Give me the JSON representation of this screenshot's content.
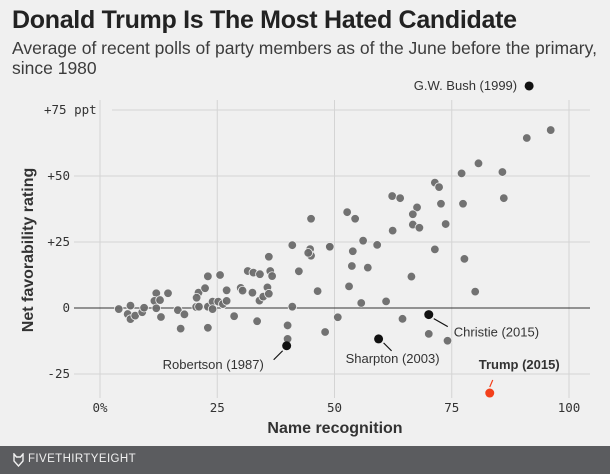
{
  "chart_data": {
    "type": "scatter",
    "title": "Donald Trump Is The Most Hated Candidate",
    "subtitle": "Average of recent polls of party members as of the June before the primary, since 1980",
    "xlabel": "Name recognition",
    "ylabel": "Net favorability rating",
    "xlim": [
      -7,
      105
    ],
    "ylim": [
      -33,
      87
    ],
    "x_ticks": [
      0,
      25,
      50,
      75,
      100
    ],
    "x_tick_labels": [
      "0%",
      "25",
      "50",
      "75",
      "100"
    ],
    "y_ticks": [
      75,
      50,
      25,
      0,
      -25
    ],
    "y_tick_labels": [
      "+75 ppt",
      "+50",
      "+25",
      "0",
      "-25"
    ],
    "grid": true,
    "colors": {
      "points": "#6a6a6a",
      "highlight": "#111111",
      "trump": "#f3401b",
      "grid": "#d4d4d4",
      "zero_line": "#333333"
    },
    "points": [
      [
        4.0,
        -0.4
      ],
      [
        6.5,
        0.9
      ],
      [
        5.9,
        -2.3
      ],
      [
        6.5,
        -4.2
      ],
      [
        7.5,
        -2.9
      ],
      [
        9.0,
        -1.6
      ],
      [
        9.4,
        0.1
      ],
      [
        12.0,
        5.6
      ],
      [
        11.6,
        2.7
      ],
      [
        12.8,
        3.0
      ],
      [
        12.0,
        -0.1
      ],
      [
        13.0,
        -3.4
      ],
      [
        14.5,
        5.6
      ],
      [
        16.6,
        -0.8
      ],
      [
        18.0,
        -2.4
      ],
      [
        17.2,
        -7.8
      ],
      [
        21.0,
        5.8
      ],
      [
        20.6,
        3.9
      ],
      [
        22.4,
        7.5
      ],
      [
        23.0,
        12.0
      ],
      [
        25.6,
        12.5
      ],
      [
        27.0,
        6.7
      ],
      [
        20.5,
        0.4
      ],
      [
        21.1,
        0.5
      ],
      [
        23.0,
        0.5
      ],
      [
        24.0,
        2.4
      ],
      [
        25.2,
        2.4
      ],
      [
        26.2,
        1.5
      ],
      [
        27.0,
        2.7
      ],
      [
        24.0,
        -0.4
      ],
      [
        23.0,
        -7.5
      ],
      [
        28.6,
        -3.1
      ],
      [
        30.0,
        7.6
      ],
      [
        30.4,
        6.6
      ],
      [
        31.5,
        14.0
      ],
      [
        32.7,
        13.4
      ],
      [
        34.1,
        12.8
      ],
      [
        32.5,
        5.8
      ],
      [
        34.0,
        2.8
      ],
      [
        34.8,
        4.3
      ],
      [
        35.7,
        7.8
      ],
      [
        36.0,
        5.4
      ],
      [
        36.0,
        19.4
      ],
      [
        36.3,
        14.0
      ],
      [
        36.7,
        12.1
      ],
      [
        33.5,
        -5.0
      ],
      [
        41.0,
        23.8
      ],
      [
        42.4,
        13.9
      ],
      [
        41.0,
        0.5
      ],
      [
        40.0,
        -6.6
      ],
      [
        40.0,
        -11.7
      ],
      [
        45.0,
        33.8
      ],
      [
        44.8,
        22.3
      ],
      [
        45.0,
        19.8
      ],
      [
        44.4,
        20.9
      ],
      [
        46.4,
        6.4
      ],
      [
        48.0,
        -9.1
      ],
      [
        48.9,
        23.0
      ],
      [
        96.1,
        67.4
      ],
      [
        91.0,
        64.4
      ],
      [
        80.7,
        54.8
      ],
      [
        77.1,
        51.0
      ],
      [
        85.8,
        51.5
      ],
      [
        86.1,
        41.6
      ],
      [
        77.4,
        39.5
      ],
      [
        71.4,
        47.5
      ],
      [
        72.3,
        45.8
      ],
      [
        72.7,
        39.5
      ],
      [
        73.7,
        31.8
      ],
      [
        62.3,
        42.4
      ],
      [
        64.0,
        41.6
      ],
      [
        52.7,
        36.3
      ],
      [
        54.4,
        33.8
      ],
      [
        67.6,
        38.1
      ],
      [
        66.7,
        35.5
      ],
      [
        66.7,
        31.6
      ],
      [
        68.1,
        30.4
      ],
      [
        62.4,
        29.3
      ],
      [
        56.1,
        25.5
      ],
      [
        59.1,
        23.9
      ],
      [
        49.0,
        23.2
      ],
      [
        53.9,
        21.5
      ],
      [
        71.4,
        22.2
      ],
      [
        77.7,
        18.6
      ],
      [
        53.7,
        15.9
      ],
      [
        57.1,
        15.3
      ],
      [
        66.4,
        11.9
      ],
      [
        53.1,
        8.2
      ],
      [
        80.0,
        6.2
      ],
      [
        55.7,
        1.9
      ],
      [
        61.0,
        2.5
      ],
      [
        50.7,
        -3.5
      ],
      [
        64.5,
        -4.1
      ],
      [
        70.1,
        -9.8
      ],
      [
        74.1,
        -12.4
      ]
    ],
    "labeled_points": [
      {
        "label": "G.W. Bush (1999)",
        "x": 91.5,
        "y": 84.1,
        "color": "#111111"
      },
      {
        "label": "Christie (2015)",
        "x": 70.1,
        "y": -2.5,
        "color": "#111111"
      },
      {
        "label": "Sharpton (2003)",
        "x": 59.4,
        "y": -11.7,
        "color": "#111111"
      },
      {
        "label": "Robertson (1987)",
        "x": 39.8,
        "y": -14.3,
        "color": "#111111"
      },
      {
        "label": "Trump (2015)",
        "x": 83.1,
        "y": -32.2,
        "color": "#f3401b"
      }
    ]
  },
  "footer": {
    "logo": "FIVETHIRTYEIGHT"
  }
}
